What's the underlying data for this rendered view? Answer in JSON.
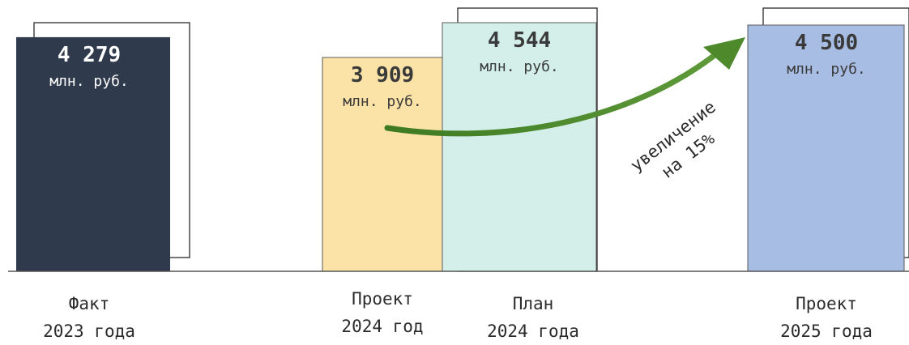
{
  "chart_data": {
    "type": "bar",
    "unit_label": "млн. руб.",
    "bars": [
      {
        "value_label": "4 279",
        "value": 4279,
        "color": "#2f3a4c",
        "label_color": "#ffffff",
        "category": [
          "Факт",
          "2023 года"
        ]
      },
      {
        "value_label": "3 909",
        "value": 3909,
        "color": "#fbe2a6",
        "label_color": "#3a3a3a",
        "category": [
          "Проект",
          "2024 год"
        ]
      },
      {
        "value_label": "4 544",
        "value": 4544,
        "color": "#d4efe9",
        "label_color": "#3a3a3a",
        "category": [
          "План",
          "2024 года"
        ]
      },
      {
        "value_label": "4 500",
        "value": 4500,
        "color": "#a8bde4",
        "label_color": "#3a3a3a",
        "category": [
          "Проект",
          "2025 года"
        ]
      }
    ],
    "annotation": {
      "line1": "увеличение",
      "line2": "на 15%"
    },
    "arrow_color": "#4e8a2c"
  }
}
